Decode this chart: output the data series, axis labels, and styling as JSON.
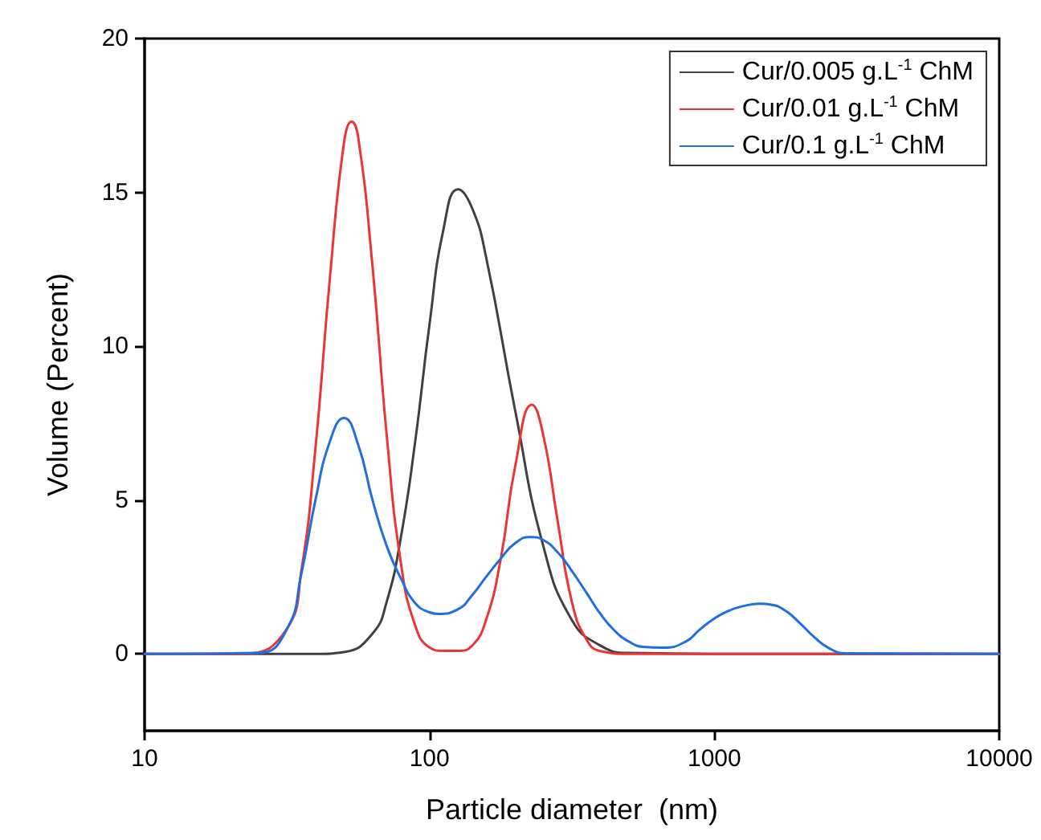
{
  "chart_data": {
    "type": "line",
    "xlabel": "Particle diameter  (nm)",
    "ylabel": "Volume (Percent)",
    "log": "x",
    "xlim": [
      10,
      10000
    ],
    "xticks": [
      10,
      100,
      1000,
      10000
    ],
    "ylim": [
      -2.5,
      20
    ],
    "yticks": [
      0,
      5,
      10,
      15,
      20
    ],
    "grid": false,
    "legend": "top right",
    "marker": "none",
    "line_style": "solid",
    "series": [
      {
        "name": "Cur/0.005 g.L$^{-1}$ ChM",
        "color": "#404040",
        "x": [
          10,
          39.8,
          50.1,
          63.1,
          70.8,
          79.4,
          89.1,
          100,
          112,
          126,
          141,
          158,
          200,
          251,
          316,
          398,
          501,
          1000,
          10000
        ],
        "values": [
          0,
          0,
          0.06,
          0.66,
          1.7,
          3.8,
          6.9,
          10.7,
          13.8,
          15.1,
          14.5,
          12.9,
          7.9,
          3.5,
          1.1,
          0.27,
          0.03,
          0,
          0
        ]
      },
      {
        "name": "Cur/0.01 g.L$^{-1}$ ChM",
        "color": "#ee3333",
        "x": [
          10,
          22,
          31.6,
          35.5,
          39.8,
          44.7,
          50.1,
          53.3,
          56.2,
          63.1,
          70.8,
          79.4,
          89.1,
          100,
          112,
          126,
          141,
          158,
          178,
          200,
          229,
          251,
          282,
          316,
          355,
          398,
          501,
          10000
        ],
        "values": [
          0,
          0,
          0.82,
          2.7,
          6.7,
          12.2,
          16.6,
          17.3,
          16.8,
          12.6,
          7.1,
          2.95,
          0.92,
          0.21,
          0.1,
          0.1,
          0.26,
          1.1,
          3.1,
          6.1,
          8.1,
          7.1,
          4.3,
          1.7,
          0.48,
          0.09,
          0,
          0
        ]
      },
      {
        "name": "Cur/0.1 g.L$^{-1}$ ChM",
        "color": "#1f6fe0",
        "x": [
          10,
          25.1,
          31.6,
          35.5,
          39.8,
          44.7,
          50.1,
          56.2,
          63.1,
          70.8,
          79.4,
          89.1,
          100,
          107,
          126,
          141,
          158,
          178,
          200,
          226,
          251,
          282,
          316,
          355,
          398,
          447,
          501,
          562,
          661,
          794,
          891,
          1000,
          1122,
          1259,
          1445,
          1585,
          1778,
          1995,
          2239,
          2512,
          2884,
          10000
        ],
        "values": [
          0,
          0.03,
          0.8,
          2.6,
          5.0,
          6.9,
          7.67,
          6.8,
          5.0,
          3.5,
          2.45,
          1.65,
          1.35,
          1.3,
          1.45,
          1.9,
          2.5,
          3.1,
          3.6,
          3.8,
          3.7,
          3.3,
          2.7,
          2.0,
          1.3,
          0.75,
          0.4,
          0.23,
          0.2,
          0.4,
          0.8,
          1.15,
          1.4,
          1.55,
          1.63,
          1.6,
          1.4,
          1.0,
          0.55,
          0.2,
          0.02,
          0
        ]
      }
    ]
  }
}
